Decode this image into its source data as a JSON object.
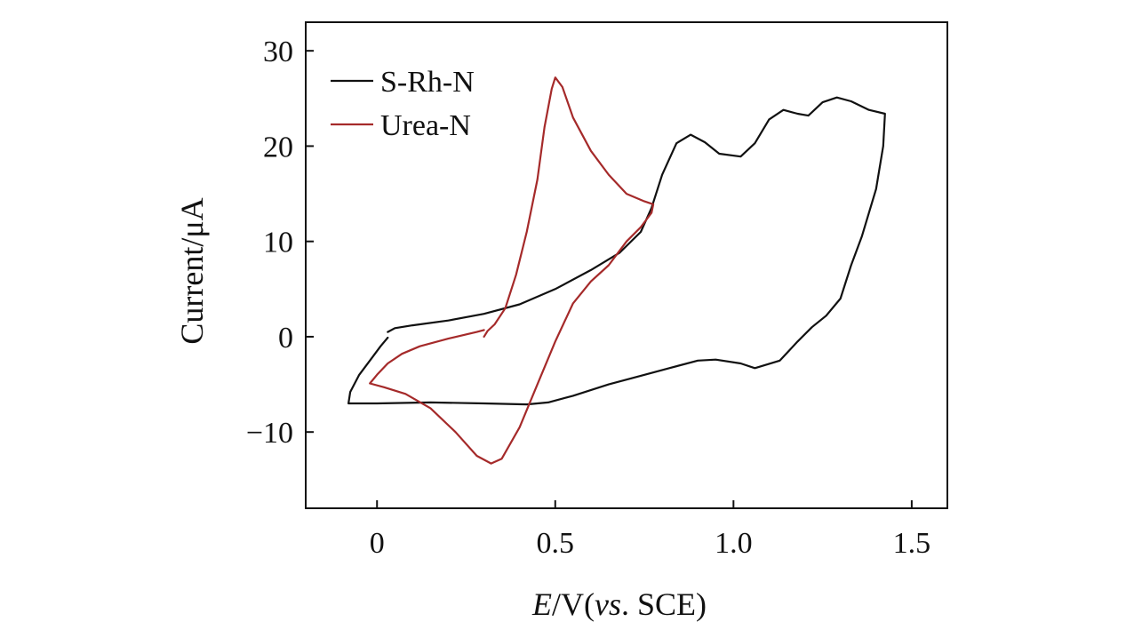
{
  "chart_data": {
    "type": "line",
    "title": "",
    "xlabel": {
      "italic": "E",
      "unit_text": "/V(",
      "italic2": "vs",
      "rest": ". SCE)"
    },
    "ylabel": "Current/μA",
    "xlim": [
      -0.2,
      1.6
    ],
    "ylim": [
      -18,
      33
    ],
    "xticks": [
      0,
      0.5,
      1.0,
      1.5
    ],
    "xtick_labels": [
      "0",
      "0.5",
      "1.0",
      "1.5"
    ],
    "yticks": [
      -10,
      0,
      10,
      20,
      30
    ],
    "ytick_labels": [
      "−10",
      "0",
      "10",
      "20",
      "30"
    ],
    "grid": false,
    "legend": {
      "position": "top-left"
    },
    "series": [
      {
        "name": "S-Rh-N",
        "color": "#111111",
        "points": [
          [
            0.03,
            0.5
          ],
          [
            0.05,
            0.9
          ],
          [
            0.1,
            1.2
          ],
          [
            0.2,
            1.7
          ],
          [
            0.3,
            2.4
          ],
          [
            0.4,
            3.4
          ],
          [
            0.5,
            5.0
          ],
          [
            0.6,
            7.0
          ],
          [
            0.68,
            8.8
          ],
          [
            0.74,
            11.0
          ],
          [
            0.77,
            13.5
          ],
          [
            0.8,
            17.0
          ],
          [
            0.84,
            20.3
          ],
          [
            0.88,
            21.2
          ],
          [
            0.92,
            20.4
          ],
          [
            0.96,
            19.2
          ],
          [
            1.02,
            18.9
          ],
          [
            1.06,
            20.3
          ],
          [
            1.1,
            22.8
          ],
          [
            1.14,
            23.8
          ],
          [
            1.18,
            23.4
          ],
          [
            1.21,
            23.2
          ],
          [
            1.25,
            24.6
          ],
          [
            1.29,
            25.1
          ],
          [
            1.33,
            24.7
          ],
          [
            1.38,
            23.8
          ],
          [
            1.425,
            23.4
          ],
          [
            1.42,
            20.0
          ],
          [
            1.4,
            15.5
          ],
          [
            1.36,
            10.5
          ],
          [
            1.33,
            7.5
          ],
          [
            1.3,
            4.0
          ],
          [
            1.26,
            2.2
          ],
          [
            1.22,
            1.0
          ],
          [
            1.18,
            -0.5
          ],
          [
            1.13,
            -2.5
          ],
          [
            1.06,
            -3.3
          ],
          [
            1.02,
            -2.8
          ],
          [
            0.95,
            -2.4
          ],
          [
            0.9,
            -2.5
          ],
          [
            0.82,
            -3.3
          ],
          [
            0.74,
            -4.1
          ],
          [
            0.65,
            -5.0
          ],
          [
            0.55,
            -6.2
          ],
          [
            0.48,
            -6.9
          ],
          [
            0.42,
            -7.1
          ],
          [
            0.3,
            -7.0
          ],
          [
            0.15,
            -6.9
          ],
          [
            0.0,
            -7.0
          ],
          [
            -0.08,
            -7.0
          ],
          [
            -0.075,
            -5.8
          ],
          [
            -0.05,
            -4.0
          ],
          [
            -0.02,
            -2.5
          ],
          [
            0.01,
            -1.0
          ],
          [
            0.03,
            -0.1
          ]
        ]
      },
      {
        "name": "Urea-N",
        "color": "#a52a2a",
        "points": [
          [
            0.3,
            0.0
          ],
          [
            0.31,
            0.6
          ],
          [
            0.33,
            1.3
          ],
          [
            0.36,
            3.0
          ],
          [
            0.39,
            6.5
          ],
          [
            0.42,
            11.0
          ],
          [
            0.45,
            16.5
          ],
          [
            0.47,
            22.0
          ],
          [
            0.49,
            26.0
          ],
          [
            0.5,
            27.2
          ],
          [
            0.52,
            26.2
          ],
          [
            0.55,
            23.0
          ],
          [
            0.6,
            19.5
          ],
          [
            0.65,
            17.0
          ],
          [
            0.7,
            15.0
          ],
          [
            0.75,
            14.2
          ],
          [
            0.775,
            13.9
          ],
          [
            0.77,
            13.0
          ],
          [
            0.74,
            11.5
          ],
          [
            0.7,
            10.0
          ],
          [
            0.65,
            7.5
          ],
          [
            0.6,
            5.8
          ],
          [
            0.55,
            3.5
          ],
          [
            0.5,
            -0.5
          ],
          [
            0.45,
            -5.0
          ],
          [
            0.4,
            -9.5
          ],
          [
            0.35,
            -12.8
          ],
          [
            0.32,
            -13.3
          ],
          [
            0.28,
            -12.5
          ],
          [
            0.22,
            -10.0
          ],
          [
            0.15,
            -7.5
          ],
          [
            0.08,
            -6.0
          ],
          [
            0.02,
            -5.3
          ],
          [
            -0.02,
            -4.9
          ],
          [
            0.0,
            -4.0
          ],
          [
            0.03,
            -2.8
          ],
          [
            0.07,
            -1.8
          ],
          [
            0.12,
            -1.0
          ],
          [
            0.2,
            -0.2
          ],
          [
            0.28,
            0.5
          ],
          [
            0.3,
            0.7
          ]
        ]
      }
    ]
  }
}
